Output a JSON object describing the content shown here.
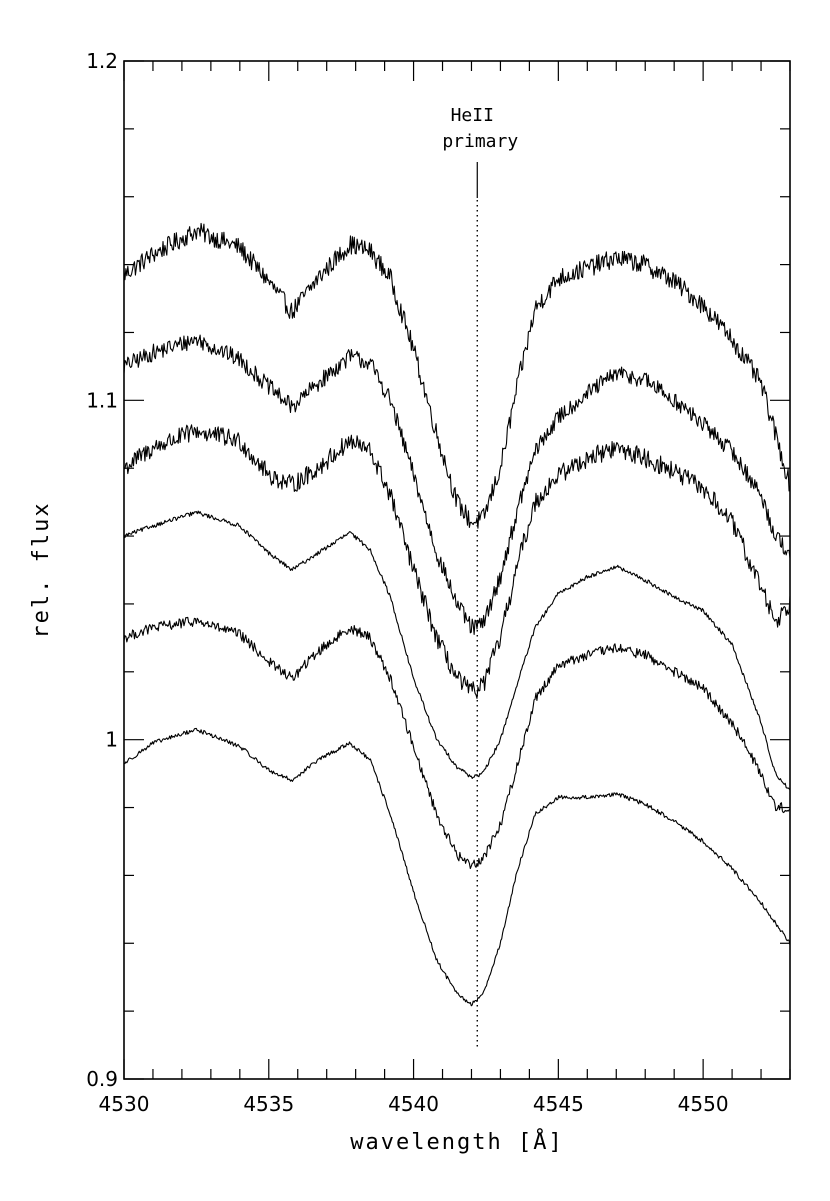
{
  "chart_data": {
    "type": "line",
    "xlabel": "wavelength [Å]",
    "ylabel": "rel. flux",
    "xlim": [
      4530,
      4553
    ],
    "ylim": [
      0.9,
      1.2
    ],
    "x_ticks": [
      {
        "value": 4530,
        "label": "4530"
      },
      {
        "value": 4535,
        "label": "4535"
      },
      {
        "value": 4540,
        "label": "4540"
      },
      {
        "value": 4545,
        "label": "4545"
      },
      {
        "value": 4550,
        "label": "4550"
      }
    ],
    "y_ticks": [
      {
        "value": 0.9,
        "label": "0.9"
      },
      {
        "value": 1.0,
        "label": "1"
      },
      {
        "value": 1.1,
        "label": "1.1"
      },
      {
        "value": 1.2,
        "label": "1.2"
      }
    ],
    "annotation": {
      "line1": "HeII",
      "line2": "primary",
      "x": 4542.2
    },
    "grid": false,
    "series": [
      {
        "noise": 0.0028,
        "x": [
          4530,
          4531,
          4532.5,
          4534,
          4535,
          4535.8,
          4536.7,
          4537.8,
          4538.5,
          4539.2,
          4540,
          4540.8,
          4541.5,
          4542,
          4542.4,
          4543,
          4543.6,
          4544.2,
          4545,
          4546,
          4547,
          4548,
          4549,
          4550,
          4551,
          4552,
          4552.5,
          4553
        ],
        "values": [
          1.137,
          1.143,
          1.15,
          1.145,
          1.135,
          1.126,
          1.136,
          1.146,
          1.144,
          1.136,
          1.115,
          1.09,
          1.07,
          1.064,
          1.065,
          1.08,
          1.105,
          1.127,
          1.136,
          1.139,
          1.142,
          1.14,
          1.135,
          1.128,
          1.118,
          1.105,
          1.09,
          1.075
        ]
      },
      {
        "noise": 0.0025,
        "x": [
          4530,
          4531,
          4532.5,
          4534,
          4535,
          4535.8,
          4536.7,
          4537.8,
          4538.5,
          4539.2,
          4540,
          4540.8,
          4541.5,
          4542,
          4542.4,
          4543,
          4543.6,
          4544.2,
          4545,
          4546,
          4547,
          4548,
          4549,
          4550,
          4551,
          4552,
          4552.5,
          4553
        ],
        "values": [
          1.11,
          1.114,
          1.118,
          1.112,
          1.104,
          1.098,
          1.105,
          1.113,
          1.111,
          1.1,
          1.078,
          1.055,
          1.04,
          1.033,
          1.034,
          1.048,
          1.068,
          1.085,
          1.095,
          1.102,
          1.108,
          1.106,
          1.1,
          1.093,
          1.085,
          1.072,
          1.06,
          1.055
        ]
      },
      {
        "noise": 0.0028,
        "x": [
          4530,
          4531,
          4532.5,
          4534,
          4535,
          4535.8,
          4536.7,
          4537.8,
          4538.5,
          4539.2,
          4540,
          4540.8,
          4541.5,
          4542,
          4542.4,
          4543,
          4543.6,
          4544.2,
          4545,
          4546,
          4547,
          4548,
          4549,
          4550,
          4551,
          4552,
          4552.5,
          4553
        ],
        "values": [
          1.08,
          1.086,
          1.091,
          1.088,
          1.078,
          1.075,
          1.08,
          1.088,
          1.085,
          1.072,
          1.05,
          1.03,
          1.018,
          1.014,
          1.016,
          1.03,
          1.052,
          1.07,
          1.078,
          1.083,
          1.086,
          1.083,
          1.079,
          1.074,
          1.064,
          1.045,
          1.035,
          1.04
        ]
      },
      {
        "noise": 0.0006,
        "x": [
          4530,
          4531,
          4532.5,
          4534,
          4535,
          4535.8,
          4536.7,
          4537.8,
          4538.5,
          4539.2,
          4540,
          4540.8,
          4541.5,
          4542,
          4542.4,
          4543,
          4543.6,
          4544.2,
          4545,
          4546,
          4547,
          4548,
          4549,
          4550,
          4551,
          4552,
          4552.5,
          4553
        ],
        "values": [
          1.06,
          1.063,
          1.067,
          1.063,
          1.055,
          1.05,
          1.055,
          1.061,
          1.056,
          1.042,
          1.018,
          1.0,
          0.992,
          0.989,
          0.99,
          1.0,
          1.017,
          1.033,
          1.043,
          1.048,
          1.051,
          1.047,
          1.042,
          1.038,
          1.028,
          1.005,
          0.99,
          0.985
        ]
      },
      {
        "noise": 0.0015,
        "x": [
          4530,
          4531,
          4532.5,
          4534,
          4535,
          4535.8,
          4536.7,
          4537.8,
          4538.5,
          4539.2,
          4540,
          4540.8,
          4541.5,
          4542,
          4542.4,
          4543,
          4543.6,
          4544.2,
          4545,
          4546,
          4547,
          4548,
          4549,
          4550,
          4551,
          4552,
          4552.5,
          4553
        ],
        "values": [
          1.03,
          1.033,
          1.035,
          1.031,
          1.023,
          1.018,
          1.026,
          1.033,
          1.03,
          1.018,
          0.998,
          0.978,
          0.966,
          0.963,
          0.965,
          0.975,
          0.993,
          1.012,
          1.022,
          1.025,
          1.027,
          1.025,
          1.02,
          1.015,
          1.005,
          0.99,
          0.98,
          0.98
        ]
      },
      {
        "noise": 0.0006,
        "x": [
          4530,
          4531,
          4532.5,
          4534,
          4535,
          4535.8,
          4536.7,
          4537.8,
          4538.5,
          4539.2,
          4540,
          4540.8,
          4541.5,
          4542,
          4542.4,
          4543,
          4543.6,
          4544.2,
          4545,
          4546,
          4547,
          4548,
          4549,
          4550,
          4551,
          4552,
          4552.5,
          4553
        ],
        "values": [
          0.993,
          0.999,
          1.003,
          0.998,
          0.991,
          0.988,
          0.994,
          0.999,
          0.994,
          0.978,
          0.955,
          0.935,
          0.925,
          0.922,
          0.925,
          0.94,
          0.962,
          0.978,
          0.983,
          0.983,
          0.984,
          0.981,
          0.976,
          0.97,
          0.962,
          0.952,
          0.946,
          0.94
        ]
      }
    ]
  }
}
